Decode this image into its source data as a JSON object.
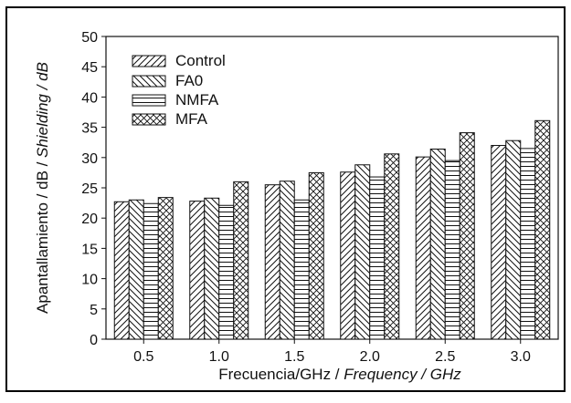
{
  "chart_data": {
    "type": "bar",
    "categories": [
      "0.5",
      "1.0",
      "1.5",
      "2.0",
      "2.5",
      "3.0"
    ],
    "series": [
      {
        "name": "Control",
        "pattern": "hatch-forward",
        "values": [
          22.7,
          22.8,
          25.5,
          27.6,
          30.1,
          32.0
        ]
      },
      {
        "name": "FA0",
        "pattern": "hatch-back",
        "values": [
          23.0,
          23.3,
          26.1,
          28.8,
          31.4,
          32.8
        ]
      },
      {
        "name": "NMFA",
        "pattern": "hatch-horizontal",
        "values": [
          22.4,
          22.1,
          23.0,
          26.8,
          29.5,
          31.5
        ]
      },
      {
        "name": "MFA",
        "pattern": "cross-hatch",
        "values": [
          23.4,
          26.0,
          27.5,
          30.6,
          34.1,
          36.1
        ]
      }
    ],
    "xlabel_plain": "Frecuencia/GHz / ",
    "xlabel_italic": "Frequency / GHz",
    "ylabel_plain": "Apantallamiento / dB / ",
    "ylabel_italic": "Shielding / dB",
    "ylim": [
      0,
      50
    ],
    "yticks": [
      0,
      5,
      10,
      15,
      20,
      25,
      30,
      35,
      40,
      45,
      50
    ],
    "grid": false,
    "legend_position": "top-left",
    "colors": {
      "ink": "#111111",
      "frame": "#000000",
      "background": "#ffffff"
    }
  }
}
